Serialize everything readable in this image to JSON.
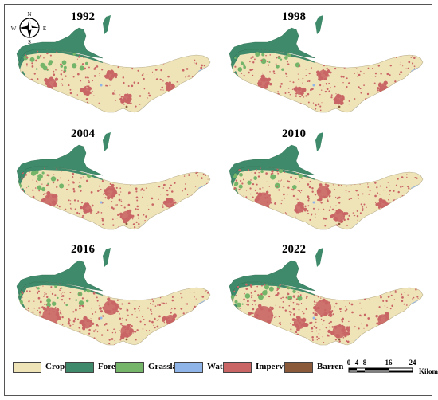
{
  "panels": [
    {
      "year": "1992",
      "growth": 0.35
    },
    {
      "year": "1998",
      "growth": 0.45
    },
    {
      "year": "2004",
      "growth": 0.6
    },
    {
      "year": "2010",
      "growth": 0.72
    },
    {
      "year": "2016",
      "growth": 0.85
    },
    {
      "year": "2022",
      "growth": 1.0
    }
  ],
  "compass": {
    "n": "N",
    "s": "S",
    "e": "E",
    "w": "W"
  },
  "legend": [
    {
      "label": "Cropland",
      "color": "#efe3b8"
    },
    {
      "label": "Forest",
      "color": "#3f8a6a"
    },
    {
      "label": "Grassland",
      "color": "#74b56a"
    },
    {
      "label": "Water",
      "color": "#8fb4e8"
    },
    {
      "label": "Impervious",
      "color": "#c96565"
    },
    {
      "label": "Barren",
      "color": "#8a5a3a"
    }
  ],
  "scale": {
    "ticks": [
      "0",
      "4",
      "8",
      "16",
      "24"
    ],
    "unit": "Kilometers"
  }
}
